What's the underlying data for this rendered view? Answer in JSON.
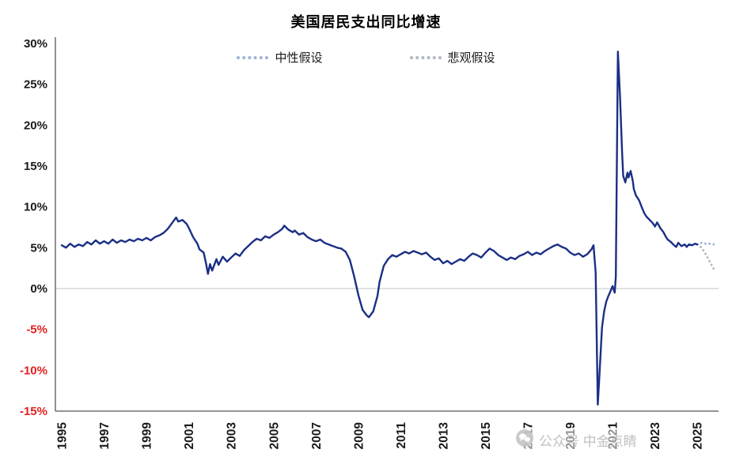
{
  "chart_data": {
    "type": "line",
    "title": "美国居民支出同比增速",
    "xlabel": "",
    "ylabel": "",
    "ylim": [
      -15,
      30
    ],
    "yticks": [
      30,
      25,
      20,
      15,
      10,
      5,
      0,
      -5,
      -10,
      -15
    ],
    "ytick_format": "percent",
    "xticks": [
      1995,
      1997,
      1999,
      2001,
      2003,
      2005,
      2007,
      2009,
      2011,
      2013,
      2015,
      2017,
      2019,
      2021,
      2023,
      2025
    ],
    "grid": "zero-line-only",
    "legend_position": "top",
    "main_series": {
      "color": "#1b2f85",
      "style": "solid",
      "points": [
        [
          1995.0,
          5.3
        ],
        [
          1995.2,
          5.0
        ],
        [
          1995.4,
          5.5
        ],
        [
          1995.6,
          5.1
        ],
        [
          1995.8,
          5.4
        ],
        [
          1996.0,
          5.2
        ],
        [
          1996.2,
          5.7
        ],
        [
          1996.4,
          5.4
        ],
        [
          1996.6,
          5.9
        ],
        [
          1996.8,
          5.5
        ],
        [
          1997.0,
          5.8
        ],
        [
          1997.2,
          5.5
        ],
        [
          1997.4,
          6.0
        ],
        [
          1997.6,
          5.6
        ],
        [
          1997.8,
          5.9
        ],
        [
          1998.0,
          5.7
        ],
        [
          1998.2,
          6.0
        ],
        [
          1998.4,
          5.8
        ],
        [
          1998.6,
          6.1
        ],
        [
          1998.8,
          5.9
        ],
        [
          1999.0,
          6.2
        ],
        [
          1999.2,
          5.9
        ],
        [
          1999.4,
          6.3
        ],
        [
          1999.6,
          6.5
        ],
        [
          1999.8,
          6.8
        ],
        [
          2000.0,
          7.3
        ],
        [
          2000.2,
          8.0
        ],
        [
          2000.4,
          8.7
        ],
        [
          2000.5,
          8.2
        ],
        [
          2000.7,
          8.4
        ],
        [
          2000.9,
          7.9
        ],
        [
          2001.0,
          7.4
        ],
        [
          2001.2,
          6.3
        ],
        [
          2001.4,
          5.5
        ],
        [
          2001.5,
          4.8
        ],
        [
          2001.7,
          4.4
        ],
        [
          2001.8,
          3.2
        ],
        [
          2001.9,
          1.8
        ],
        [
          2002.0,
          3.0
        ],
        [
          2002.1,
          2.2
        ],
        [
          2002.3,
          3.6
        ],
        [
          2002.4,
          2.9
        ],
        [
          2002.6,
          3.9
        ],
        [
          2002.8,
          3.3
        ],
        [
          2003.0,
          3.8
        ],
        [
          2003.2,
          4.3
        ],
        [
          2003.4,
          4.0
        ],
        [
          2003.6,
          4.7
        ],
        [
          2003.8,
          5.2
        ],
        [
          2004.0,
          5.7
        ],
        [
          2004.2,
          6.1
        ],
        [
          2004.4,
          5.9
        ],
        [
          2004.6,
          6.4
        ],
        [
          2004.8,
          6.2
        ],
        [
          2005.0,
          6.6
        ],
        [
          2005.2,
          6.9
        ],
        [
          2005.4,
          7.3
        ],
        [
          2005.5,
          7.7
        ],
        [
          2005.7,
          7.2
        ],
        [
          2005.9,
          6.9
        ],
        [
          2006.0,
          7.1
        ],
        [
          2006.2,
          6.6
        ],
        [
          2006.4,
          6.8
        ],
        [
          2006.6,
          6.3
        ],
        [
          2006.8,
          6.0
        ],
        [
          2007.0,
          5.8
        ],
        [
          2007.2,
          6.0
        ],
        [
          2007.4,
          5.6
        ],
        [
          2007.6,
          5.4
        ],
        [
          2007.8,
          5.2
        ],
        [
          2008.0,
          5.0
        ],
        [
          2008.2,
          4.9
        ],
        [
          2008.4,
          4.5
        ],
        [
          2008.6,
          3.5
        ],
        [
          2008.8,
          1.5
        ],
        [
          2009.0,
          -0.8
        ],
        [
          2009.2,
          -2.6
        ],
        [
          2009.4,
          -3.3
        ],
        [
          2009.5,
          -3.5
        ],
        [
          2009.7,
          -2.8
        ],
        [
          2009.9,
          -0.9
        ],
        [
          2010.0,
          0.8
        ],
        [
          2010.2,
          2.8
        ],
        [
          2010.4,
          3.6
        ],
        [
          2010.6,
          4.1
        ],
        [
          2010.8,
          3.9
        ],
        [
          2011.0,
          4.2
        ],
        [
          2011.2,
          4.5
        ],
        [
          2011.4,
          4.3
        ],
        [
          2011.6,
          4.6
        ],
        [
          2011.8,
          4.4
        ],
        [
          2012.0,
          4.2
        ],
        [
          2012.2,
          4.4
        ],
        [
          2012.4,
          3.9
        ],
        [
          2012.6,
          3.5
        ],
        [
          2012.8,
          3.7
        ],
        [
          2013.0,
          3.1
        ],
        [
          2013.2,
          3.4
        ],
        [
          2013.4,
          3.0
        ],
        [
          2013.6,
          3.3
        ],
        [
          2013.8,
          3.6
        ],
        [
          2014.0,
          3.4
        ],
        [
          2014.2,
          3.9
        ],
        [
          2014.4,
          4.3
        ],
        [
          2014.6,
          4.1
        ],
        [
          2014.8,
          3.8
        ],
        [
          2015.0,
          4.4
        ],
        [
          2015.2,
          4.9
        ],
        [
          2015.4,
          4.6
        ],
        [
          2015.6,
          4.1
        ],
        [
          2015.8,
          3.8
        ],
        [
          2016.0,
          3.5
        ],
        [
          2016.2,
          3.8
        ],
        [
          2016.4,
          3.6
        ],
        [
          2016.6,
          4.0
        ],
        [
          2016.8,
          4.2
        ],
        [
          2017.0,
          4.5
        ],
        [
          2017.2,
          4.1
        ],
        [
          2017.4,
          4.4
        ],
        [
          2017.6,
          4.2
        ],
        [
          2017.8,
          4.6
        ],
        [
          2018.0,
          4.9
        ],
        [
          2018.2,
          5.2
        ],
        [
          2018.4,
          5.4
        ],
        [
          2018.6,
          5.1
        ],
        [
          2018.8,
          4.9
        ],
        [
          2019.0,
          4.4
        ],
        [
          2019.2,
          4.1
        ],
        [
          2019.4,
          4.3
        ],
        [
          2019.6,
          3.9
        ],
        [
          2019.8,
          4.2
        ],
        [
          2020.0,
          4.8
        ],
        [
          2020.1,
          5.3
        ],
        [
          2020.2,
          2.0
        ],
        [
          2020.3,
          -14.2
        ],
        [
          2020.4,
          -9.5
        ],
        [
          2020.5,
          -4.8
        ],
        [
          2020.6,
          -2.8
        ],
        [
          2020.7,
          -1.6
        ],
        [
          2020.8,
          -0.9
        ],
        [
          2020.9,
          -0.3
        ],
        [
          2021.0,
          0.3
        ],
        [
          2021.1,
          -0.5
        ],
        [
          2021.15,
          1.5
        ],
        [
          2021.25,
          29.0
        ],
        [
          2021.35,
          23.5
        ],
        [
          2021.45,
          16.5
        ],
        [
          2021.5,
          13.8
        ],
        [
          2021.6,
          13.0
        ],
        [
          2021.7,
          14.2
        ],
        [
          2021.75,
          13.6
        ],
        [
          2021.85,
          14.4
        ],
        [
          2021.95,
          13.2
        ],
        [
          2022.0,
          12.2
        ],
        [
          2022.1,
          11.4
        ],
        [
          2022.25,
          10.8
        ],
        [
          2022.4,
          9.8
        ],
        [
          2022.5,
          9.2
        ],
        [
          2022.6,
          8.8
        ],
        [
          2022.75,
          8.4
        ],
        [
          2022.9,
          8.0
        ],
        [
          2023.0,
          7.6
        ],
        [
          2023.1,
          8.1
        ],
        [
          2023.25,
          7.4
        ],
        [
          2023.4,
          6.9
        ],
        [
          2023.5,
          6.4
        ],
        [
          2023.6,
          6.0
        ],
        [
          2023.75,
          5.7
        ],
        [
          2023.9,
          5.3
        ],
        [
          2024.0,
          5.1
        ],
        [
          2024.1,
          5.6
        ],
        [
          2024.25,
          5.2
        ],
        [
          2024.4,
          5.4
        ],
        [
          2024.5,
          5.1
        ],
        [
          2024.6,
          5.4
        ],
        [
          2024.75,
          5.3
        ],
        [
          2024.9,
          5.5
        ],
        [
          2025.0,
          5.4
        ]
      ]
    },
    "forecast_series": [
      {
        "name": "中性假设",
        "color": "#9fb3d8",
        "style": "dotted",
        "points": [
          [
            2025.0,
            5.4
          ],
          [
            2025.2,
            5.6
          ],
          [
            2025.4,
            5.5
          ],
          [
            2025.6,
            5.5
          ],
          [
            2025.8,
            5.4
          ]
        ]
      },
      {
        "name": "悲观假设",
        "color": "#b0b6c2",
        "style": "dotted",
        "points": [
          [
            2025.0,
            5.4
          ],
          [
            2025.2,
            5.0
          ],
          [
            2025.4,
            4.2
          ],
          [
            2025.6,
            3.2
          ],
          [
            2025.8,
            2.3
          ]
        ]
      }
    ]
  },
  "watermark": {
    "text": "公众号 中金点睛"
  },
  "colors": {
    "tick": "#1a1a1a",
    "negative_tick": "#e02020",
    "zero_line": "#cfcfcf",
    "axis": "#555555",
    "watermark_icon": "#c8c8c8"
  }
}
